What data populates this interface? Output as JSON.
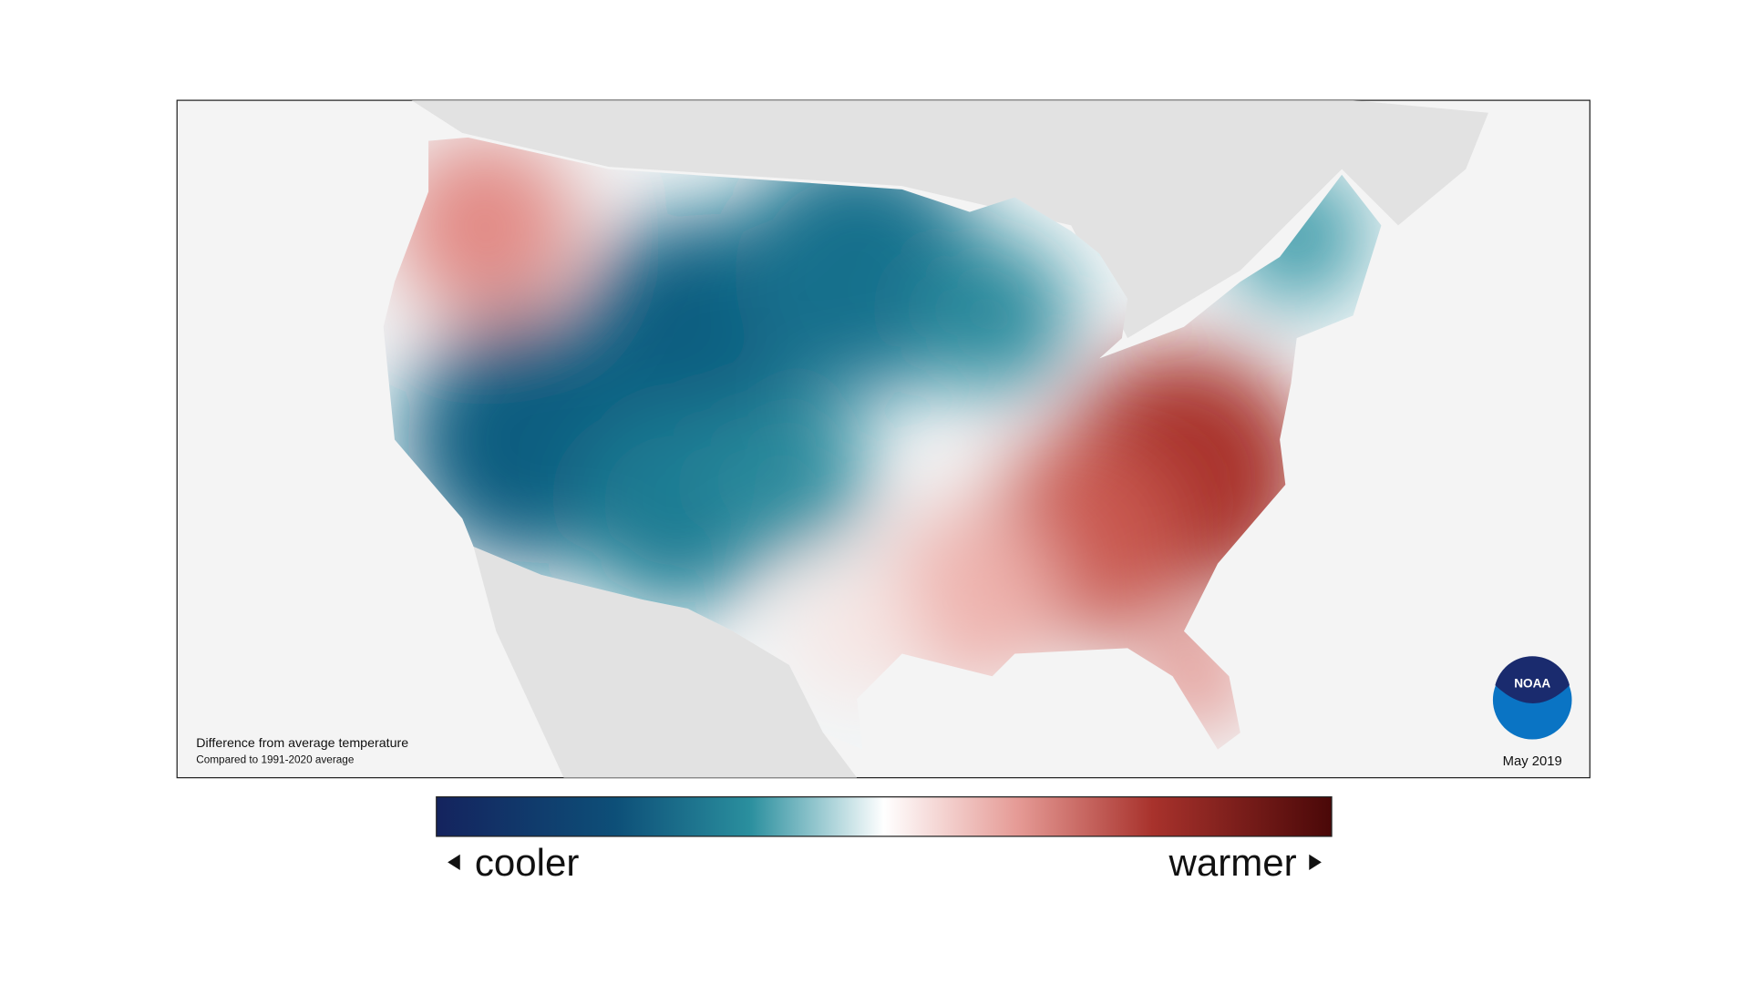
{
  "map": {
    "caption_title": "Difference from average temperature",
    "caption_subtitle": "Compared to 1991-2020 average",
    "date": "May 2019",
    "logo": "NOAA"
  },
  "legend": {
    "low_label": "cooler",
    "high_label": "warmer"
  }
}
